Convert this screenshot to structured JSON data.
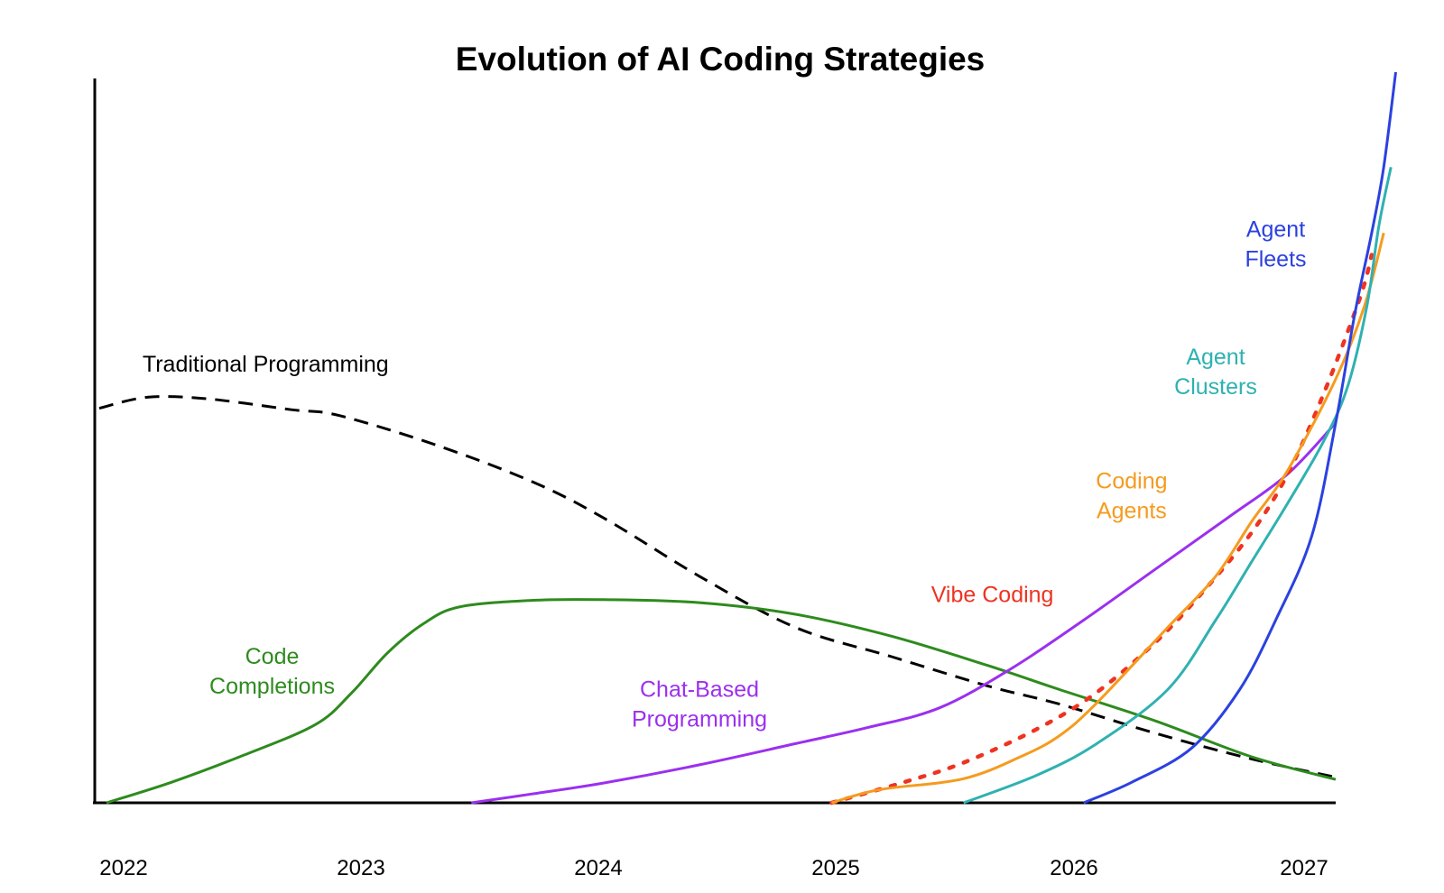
{
  "chart_data": {
    "type": "line",
    "title": "Evolution of AI Coding Strategies",
    "xlabel": "",
    "ylabel": "",
    "xlim": [
      2022.0,
      2027.15
    ],
    "ylim": [
      0,
      100
    ],
    "grid": false,
    "legend": "none",
    "x_ticks": [
      "2022",
      "2023",
      "2024",
      "2025",
      "2026",
      "2027"
    ],
    "series": [
      {
        "name": "Traditional Programming",
        "color": "#000000",
        "dash": "dashed",
        "points": [
          [
            2022.0,
            54
          ],
          [
            2022.2,
            55.5
          ],
          [
            2022.45,
            55.3
          ],
          [
            2022.8,
            53.8
          ],
          [
            2023.0,
            53
          ],
          [
            2023.4,
            49
          ],
          [
            2023.8,
            44
          ],
          [
            2024.1,
            39
          ],
          [
            2024.5,
            31
          ],
          [
            2024.9,
            24
          ],
          [
            2025.3,
            20
          ],
          [
            2025.7,
            16
          ],
          [
            2026.0,
            13.5
          ],
          [
            2026.4,
            9.5
          ],
          [
            2026.8,
            6
          ],
          [
            2027.15,
            3.5
          ]
        ]
      },
      {
        "name": "Code Completions",
        "color": "#2e8b1e",
        "dash": "solid",
        "points": [
          [
            2022.03,
            0
          ],
          [
            2022.3,
            2.8
          ],
          [
            2022.6,
            6.5
          ],
          [
            2022.9,
            10.7
          ],
          [
            2023.05,
            15
          ],
          [
            2023.2,
            20.5
          ],
          [
            2023.35,
            24.5
          ],
          [
            2023.5,
            26.8
          ],
          [
            2023.8,
            27.7
          ],
          [
            2024.1,
            27.8
          ],
          [
            2024.5,
            27.4
          ],
          [
            2024.9,
            25.8
          ],
          [
            2025.3,
            22.8
          ],
          [
            2025.7,
            18.8
          ],
          [
            2026.0,
            15.5
          ],
          [
            2026.4,
            11.2
          ],
          [
            2026.8,
            6.3
          ],
          [
            2027.15,
            3.2
          ]
        ]
      },
      {
        "name": "Chat-Based Programming",
        "color": "#9b30ef",
        "dash": "solid",
        "points": [
          [
            2023.55,
            0
          ],
          [
            2023.8,
            1.2
          ],
          [
            2024.1,
            2.7
          ],
          [
            2024.5,
            5.2
          ],
          [
            2024.9,
            8.1
          ],
          [
            2025.2,
            10.3
          ],
          [
            2025.5,
            13.0
          ],
          [
            2025.8,
            18.4
          ],
          [
            2026.1,
            25.0
          ],
          [
            2026.4,
            32.0
          ],
          [
            2026.7,
            39.0
          ],
          [
            2026.95,
            45.0
          ],
          [
            2027.15,
            52.0
          ]
        ]
      },
      {
        "name": "Vibe Coding",
        "color": "#ee3322",
        "dash": "dotted",
        "points": [
          [
            2025.05,
            0
          ],
          [
            2025.35,
            2.8
          ],
          [
            2025.6,
            5.5
          ],
          [
            2025.9,
            10
          ],
          [
            2026.15,
            15
          ],
          [
            2026.4,
            22
          ],
          [
            2026.6,
            29
          ],
          [
            2026.8,
            37
          ],
          [
            2026.95,
            45
          ],
          [
            2027.1,
            56
          ],
          [
            2027.25,
            69
          ],
          [
            2027.3,
            75
          ]
        ]
      },
      {
        "name": "Coding Agents",
        "color": "#f59b1f",
        "dash": "solid",
        "points": [
          [
            2025.05,
            0
          ],
          [
            2025.25,
            1.8
          ],
          [
            2025.6,
            3.3
          ],
          [
            2025.85,
            6.5
          ],
          [
            2026.0,
            9.2
          ],
          [
            2026.15,
            13.5
          ],
          [
            2026.45,
            24
          ],
          [
            2026.65,
            31
          ],
          [
            2026.8,
            38.5
          ],
          [
            2026.95,
            45.5
          ],
          [
            2027.15,
            58
          ],
          [
            2027.27,
            68
          ],
          [
            2027.35,
            78
          ]
        ]
      },
      {
        "name": "Agent Clusters",
        "color": "#2fb1b1",
        "dash": "solid",
        "points": [
          [
            2025.6,
            0
          ],
          [
            2025.9,
            3.7
          ],
          [
            2026.15,
            8.0
          ],
          [
            2026.45,
            15.5
          ],
          [
            2026.65,
            25
          ],
          [
            2026.8,
            33
          ],
          [
            2026.95,
            41
          ],
          [
            2027.1,
            49.5
          ],
          [
            2027.2,
            57
          ],
          [
            2027.28,
            68
          ],
          [
            2027.33,
            79
          ],
          [
            2027.38,
            87
          ]
        ]
      },
      {
        "name": "Agent Fleets",
        "color": "#2b41e0",
        "dash": "solid",
        "points": [
          [
            2026.1,
            0
          ],
          [
            2026.3,
            2.8
          ],
          [
            2026.55,
            7.5
          ],
          [
            2026.75,
            15.5
          ],
          [
            2026.9,
            25
          ],
          [
            2027.05,
            36.5
          ],
          [
            2027.15,
            52
          ],
          [
            2027.23,
            67
          ],
          [
            2027.3,
            78
          ],
          [
            2027.35,
            87
          ],
          [
            2027.4,
            100
          ]
        ]
      }
    ],
    "annotations": [
      {
        "text": "Traditional Programming",
        "lines": [
          "Traditional Programming"
        ],
        "x": 2022.18,
        "y": 59,
        "color": "#000000",
        "anchor": "start"
      },
      {
        "text": "Code Completions",
        "lines": [
          "Code",
          "Completions"
        ],
        "x": 2022.72,
        "y": 19,
        "color": "#2e8b1e",
        "anchor": "middle"
      },
      {
        "text": "Chat-Based Programming",
        "lines": [
          "Chat-Based",
          "Programming"
        ],
        "x": 2024.5,
        "y": 14.5,
        "color": "#9b30ef",
        "anchor": "middle"
      },
      {
        "text": "Vibe Coding",
        "lines": [
          "Vibe Coding"
        ],
        "x": 2025.72,
        "y": 27.5,
        "color": "#ee3322",
        "anchor": "middle"
      },
      {
        "text": "Coding Agents",
        "lines": [
          "Coding",
          "Agents"
        ],
        "x": 2026.3,
        "y": 43,
        "color": "#f59b1f",
        "anchor": "middle"
      },
      {
        "text": "Agent Clusters",
        "lines": [
          "Agent",
          "Clusters"
        ],
        "x": 2026.65,
        "y": 60,
        "color": "#2fb1b1",
        "anchor": "middle"
      },
      {
        "text": "Agent Fleets",
        "lines": [
          "Agent",
          "Fleets"
        ],
        "x": 2026.9,
        "y": 77.5,
        "color": "#2b41e0",
        "anchor": "middle"
      }
    ]
  }
}
